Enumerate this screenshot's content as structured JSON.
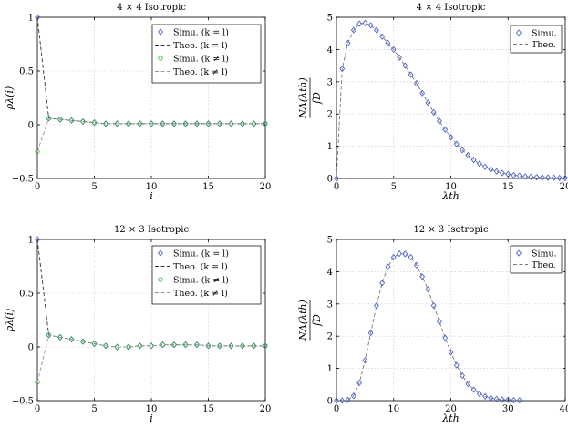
{
  "chart_data": [
    {
      "type": "line",
      "title": "4 × 4 Isotropic",
      "xlabel": "i",
      "ylabel": "ρλ(i)",
      "xlim": [
        0,
        20
      ],
      "ylim": [
        -0.5,
        1
      ],
      "xticks": [
        "0",
        "5",
        "10",
        "15",
        "20"
      ],
      "xtick_values": [
        0,
        5,
        10,
        15,
        20
      ],
      "yticks": [
        "−0.5",
        "0",
        "0.5",
        "1"
      ],
      "ytick_values": [
        -0.5,
        0,
        0.5,
        1
      ],
      "grid": true,
      "legend_position": "top-right",
      "series": [
        {
          "name": "Simu. (k = l)",
          "style": "marker",
          "marker": "diamond",
          "color": "#3a55d4",
          "x": [
            0,
            1,
            2,
            3,
            4,
            5,
            6,
            7,
            8,
            9,
            10,
            11,
            12,
            13,
            14,
            15,
            16,
            17,
            18,
            19,
            20
          ],
          "y": [
            1.0,
            0.06,
            0.05,
            0.04,
            0.03,
            0.02,
            0.01,
            0.01,
            0.01,
            0.01,
            0.01,
            0.01,
            0.01,
            0.01,
            0.01,
            0.01,
            0.01,
            0.01,
            0.01,
            0.01,
            0.01
          ]
        },
        {
          "name": "Theo. (k = l)",
          "style": "dashed",
          "color": "#333333",
          "x": [
            0,
            1,
            2,
            3,
            4,
            5,
            6,
            7,
            8,
            9,
            10,
            11,
            12,
            13,
            14,
            15,
            16,
            17,
            18,
            19,
            20
          ],
          "y": [
            1.0,
            0.06,
            0.05,
            0.04,
            0.03,
            0.02,
            0.01,
            0.01,
            0.01,
            0.01,
            0.01,
            0.01,
            0.01,
            0.01,
            0.01,
            0.01,
            0.01,
            0.01,
            0.01,
            0.01,
            0.01
          ]
        },
        {
          "name": "Simu. (k ≠ l)",
          "style": "marker",
          "marker": "circle",
          "color": "#33bb33",
          "x": [
            0,
            1,
            2,
            3,
            4,
            5,
            6,
            7,
            8,
            9,
            10,
            11,
            12,
            13,
            14,
            15,
            16,
            17,
            18,
            19,
            20
          ],
          "y": [
            -0.25,
            0.06,
            0.05,
            0.04,
            0.03,
            0.02,
            0.01,
            0.01,
            0.01,
            0.01,
            0.01,
            0.01,
            0.01,
            0.01,
            0.01,
            0.01,
            0.01,
            0.01,
            0.01,
            0.01,
            0.01
          ]
        },
        {
          "name": "Theo. (k ≠ l)",
          "style": "dashed",
          "color": "#999999",
          "x": [
            0,
            1,
            2,
            3,
            4,
            5,
            6,
            7,
            8,
            9,
            10,
            11,
            12,
            13,
            14,
            15,
            16,
            17,
            18,
            19,
            20
          ],
          "y": [
            -0.25,
            0.06,
            0.05,
            0.04,
            0.03,
            0.02,
            0.01,
            0.01,
            0.01,
            0.01,
            0.01,
            0.01,
            0.01,
            0.01,
            0.01,
            0.01,
            0.01,
            0.01,
            0.01,
            0.01,
            0.01
          ]
        }
      ]
    },
    {
      "type": "line",
      "title": "4 × 4 Isotropic",
      "xlabel": "λth",
      "ylabel_num": "NΛ(λth)",
      "ylabel_den": "fD",
      "xlim": [
        0,
        20
      ],
      "ylim": [
        0,
        5
      ],
      "xticks": [
        "0",
        "5",
        "10",
        "15",
        "20"
      ],
      "xtick_values": [
        0,
        5,
        10,
        15,
        20
      ],
      "yticks": [
        "0",
        "1",
        "2",
        "3",
        "4",
        "5"
      ],
      "ytick_values": [
        0,
        1,
        2,
        3,
        4,
        5
      ],
      "grid": true,
      "legend_position": "top-right",
      "series": [
        {
          "name": "Simu.",
          "style": "marker",
          "marker": "diamond",
          "color": "#3a55d4",
          "x": [
            0,
            0.5,
            1,
            1.5,
            2,
            2.5,
            3,
            3.5,
            4,
            4.5,
            5,
            5.5,
            6,
            6.5,
            7,
            7.5,
            8,
            8.5,
            9,
            9.5,
            10,
            10.5,
            11,
            11.5,
            12,
            12.5,
            13,
            13.5,
            14,
            14.5,
            15,
            15.5,
            16,
            16.5,
            17,
            17.5,
            18,
            18.5,
            19,
            19.5,
            20
          ],
          "y": [
            0,
            3.4,
            4.2,
            4.6,
            4.8,
            4.82,
            4.75,
            4.6,
            4.4,
            4.2,
            4.0,
            3.75,
            3.5,
            3.22,
            2.95,
            2.65,
            2.35,
            2.05,
            1.78,
            1.52,
            1.28,
            1.07,
            0.88,
            0.72,
            0.58,
            0.46,
            0.36,
            0.28,
            0.22,
            0.17,
            0.13,
            0.1,
            0.08,
            0.06,
            0.05,
            0.04,
            0.03,
            0.025,
            0.02,
            0.015,
            0.01
          ]
        },
        {
          "name": "Theo.",
          "style": "dashed",
          "color": "#777777",
          "x": [
            0,
            0.5,
            1,
            1.5,
            2,
            2.5,
            3,
            3.5,
            4,
            4.5,
            5,
            5.5,
            6,
            6.5,
            7,
            7.5,
            8,
            8.5,
            9,
            9.5,
            10,
            10.5,
            11,
            11.5,
            12,
            12.5,
            13,
            13.5,
            14,
            14.5,
            15,
            15.5,
            16,
            16.5,
            17,
            17.5,
            18,
            18.5,
            19,
            19.5,
            20
          ],
          "y": [
            0,
            3.4,
            4.2,
            4.6,
            4.8,
            4.82,
            4.75,
            4.6,
            4.4,
            4.2,
            4.0,
            3.75,
            3.5,
            3.22,
            2.95,
            2.65,
            2.35,
            2.05,
            1.78,
            1.52,
            1.28,
            1.07,
            0.88,
            0.72,
            0.58,
            0.46,
            0.36,
            0.28,
            0.22,
            0.17,
            0.13,
            0.1,
            0.08,
            0.06,
            0.05,
            0.04,
            0.03,
            0.025,
            0.02,
            0.015,
            0.01
          ]
        }
      ]
    },
    {
      "type": "line",
      "title": "12 × 3 Isotropic",
      "xlabel": "i",
      "ylabel": "ρλ(i)",
      "xlim": [
        0,
        20
      ],
      "ylim": [
        -0.5,
        1
      ],
      "xticks": [
        "0",
        "5",
        "10",
        "15",
        "20"
      ],
      "xtick_values": [
        0,
        5,
        10,
        15,
        20
      ],
      "yticks": [
        "−0.5",
        "0",
        "0.5",
        "1"
      ],
      "ytick_values": [
        -0.5,
        0,
        0.5,
        1
      ],
      "grid": true,
      "legend_position": "top-right",
      "series": [
        {
          "name": "Simu. (k = l)",
          "style": "marker",
          "marker": "diamond",
          "color": "#3a55d4",
          "x": [
            0,
            1,
            2,
            3,
            4,
            5,
            6,
            7,
            8,
            9,
            10,
            11,
            12,
            13,
            14,
            15,
            16,
            17,
            18,
            19,
            20
          ],
          "y": [
            1.0,
            0.11,
            0.09,
            0.07,
            0.05,
            0.03,
            0.01,
            0.0,
            0.0,
            0.01,
            0.01,
            0.02,
            0.02,
            0.02,
            0.02,
            0.01,
            0.01,
            0.01,
            0.01,
            0.01,
            0.01
          ]
        },
        {
          "name": "Theo. (k = l)",
          "style": "dashed",
          "color": "#333333",
          "x": [
            0,
            1,
            2,
            3,
            4,
            5,
            6,
            7,
            8,
            9,
            10,
            11,
            12,
            13,
            14,
            15,
            16,
            17,
            18,
            19,
            20
          ],
          "y": [
            1.0,
            0.11,
            0.09,
            0.07,
            0.05,
            0.03,
            0.01,
            0.0,
            0.0,
            0.01,
            0.01,
            0.02,
            0.02,
            0.02,
            0.02,
            0.01,
            0.01,
            0.01,
            0.01,
            0.01,
            0.01
          ]
        },
        {
          "name": "Simu. (k ≠ l)",
          "style": "marker",
          "marker": "circle",
          "color": "#33bb33",
          "x": [
            0,
            1,
            2,
            3,
            4,
            5,
            6,
            7,
            8,
            9,
            10,
            11,
            12,
            13,
            14,
            15,
            16,
            17,
            18,
            19,
            20
          ],
          "y": [
            -0.33,
            0.11,
            0.09,
            0.07,
            0.05,
            0.03,
            0.01,
            0.0,
            0.0,
            0.01,
            0.01,
            0.02,
            0.02,
            0.02,
            0.02,
            0.01,
            0.01,
            0.01,
            0.01,
            0.01,
            0.01
          ]
        },
        {
          "name": "Theo. (k ≠ l)",
          "style": "dashed",
          "color": "#999999",
          "x": [
            0,
            1,
            2,
            3,
            4,
            5,
            6,
            7,
            8,
            9,
            10,
            11,
            12,
            13,
            14,
            15,
            16,
            17,
            18,
            19,
            20
          ],
          "y": [
            -0.33,
            0.11,
            0.09,
            0.07,
            0.05,
            0.03,
            0.01,
            0.0,
            0.0,
            0.01,
            0.01,
            0.02,
            0.02,
            0.02,
            0.02,
            0.01,
            0.01,
            0.01,
            0.01,
            0.01,
            0.01
          ]
        }
      ]
    },
    {
      "type": "line",
      "title": "12 × 3 Isotropic",
      "xlabel": "λth",
      "ylabel_num": "NΛ(λth)",
      "ylabel_den": "fD",
      "xlim": [
        0,
        40
      ],
      "ylim": [
        0,
        5
      ],
      "xticks": [
        "0",
        "10",
        "20",
        "30",
        "40"
      ],
      "xtick_values": [
        0,
        10,
        20,
        30,
        40
      ],
      "yticks": [
        "0",
        "1",
        "2",
        "3",
        "4",
        "5"
      ],
      "ytick_values": [
        0,
        1,
        2,
        3,
        4,
        5
      ],
      "grid": true,
      "legend_position": "top-right",
      "series": [
        {
          "name": "Simu.",
          "style": "marker",
          "marker": "diamond",
          "color": "#3a55d4",
          "x": [
            0,
            1,
            2,
            3,
            4,
            5,
            6,
            7,
            8,
            9,
            10,
            11,
            12,
            13,
            14,
            15,
            16,
            17,
            18,
            19,
            20,
            21,
            22,
            23,
            24,
            25,
            26,
            27,
            28,
            29,
            30,
            31,
            32
          ],
          "y": [
            0,
            0,
            0.02,
            0.15,
            0.55,
            1.25,
            2.1,
            2.95,
            3.65,
            4.15,
            4.45,
            4.56,
            4.55,
            4.45,
            4.2,
            3.85,
            3.45,
            2.95,
            2.45,
            1.95,
            1.5,
            1.1,
            0.78,
            0.52,
            0.34,
            0.21,
            0.13,
            0.08,
            0.05,
            0.03,
            0.02,
            0.01,
            0.01
          ]
        },
        {
          "name": "Theo.",
          "style": "dashed",
          "color": "#777777",
          "x": [
            0,
            1,
            2,
            3,
            4,
            5,
            6,
            7,
            8,
            9,
            10,
            11,
            12,
            13,
            14,
            15,
            16,
            17,
            18,
            19,
            20,
            21,
            22,
            23,
            24,
            25,
            26,
            27,
            28,
            29,
            30,
            31,
            32
          ],
          "y": [
            0,
            0,
            0.02,
            0.15,
            0.55,
            1.25,
            2.1,
            2.95,
            3.65,
            4.15,
            4.45,
            4.56,
            4.55,
            4.45,
            4.2,
            3.85,
            3.45,
            2.95,
            2.45,
            1.95,
            1.5,
            1.1,
            0.78,
            0.52,
            0.34,
            0.21,
            0.13,
            0.08,
            0.05,
            0.03,
            0.02,
            0.01,
            0.01
          ]
        }
      ]
    }
  ]
}
